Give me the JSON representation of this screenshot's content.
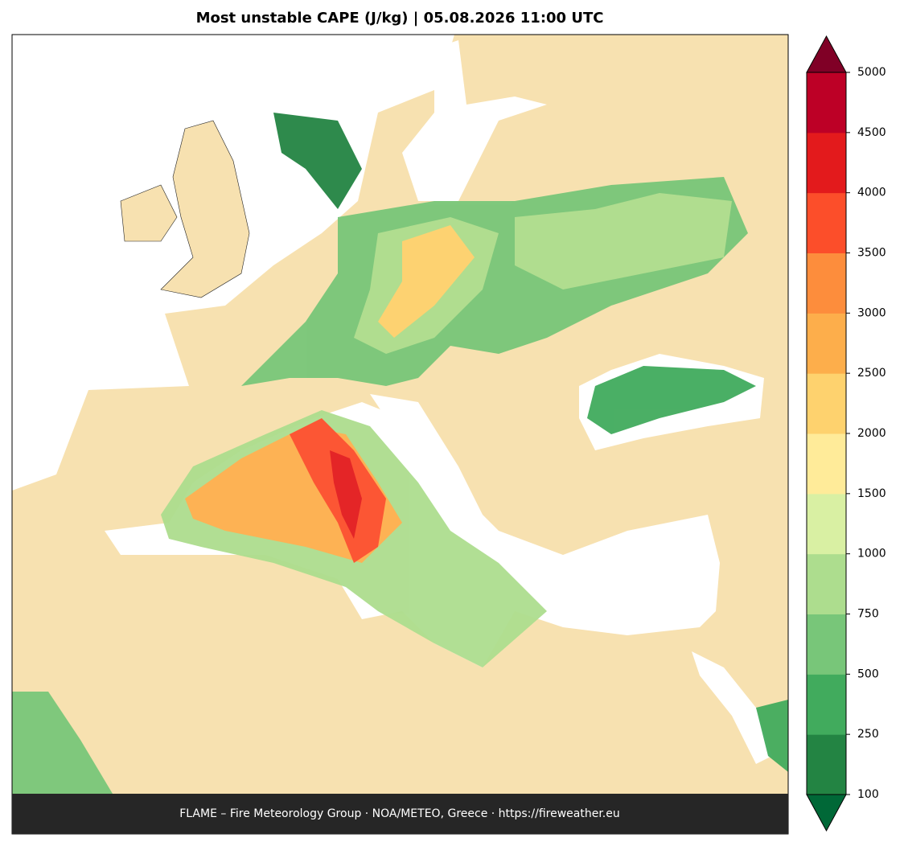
{
  "title": "Most unstable CAPE (J/kg)  |  05.08.2026 11:00 UTC",
  "footer": "FLAME – Fire Meteorology Group · NOA/METEO, Greece · https://fireweather.eu",
  "colorbar": {
    "ticks": [
      100,
      250,
      500,
      750,
      1000,
      1500,
      2000,
      2500,
      3000,
      3500,
      4000,
      4500,
      5000
    ],
    "colors": [
      "#238443",
      "#41ab5d",
      "#78c679",
      "#addd8e",
      "#d9f0a3",
      "#ffeb99",
      "#fed26e",
      "#fdae4b",
      "#fd8d3c",
      "#fc4e2a",
      "#e31a1c",
      "#bd0026"
    ],
    "under_color": "#006837",
    "over_color": "#800026"
  }
}
